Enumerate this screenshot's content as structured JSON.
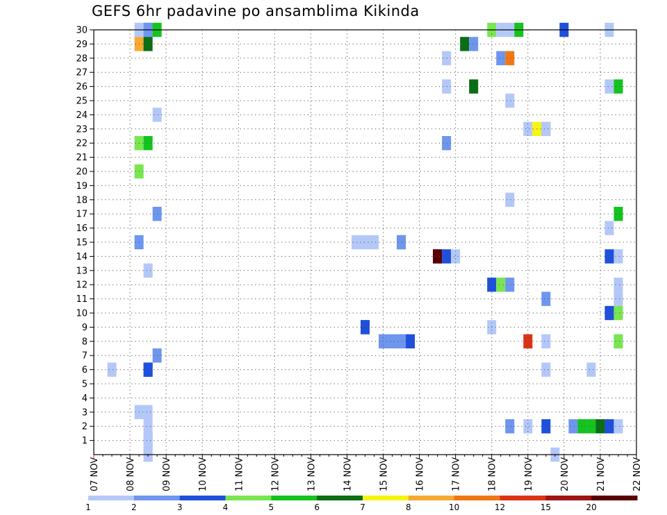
{
  "chart_data": {
    "type": "heatmap",
    "title": "GEFS 6hr padavine po ansamblima Kikinda",
    "xlabel": "",
    "ylabel": "",
    "x_tick_labels": [
      "07 NOV",
      "08 NOV",
      "09 NOV",
      "10 NOV",
      "11 NOV",
      "12 NOV",
      "13 NOV",
      "14 NOV",
      "15 NOV",
      "16 NOV",
      "17 NOV",
      "18 NOV",
      "19 NOV",
      "20 NOV",
      "21 NOV",
      "22 NOV"
    ],
    "x_range_days": [
      0,
      15
    ],
    "y_tick_labels": [
      "1",
      "2",
      "3",
      "4",
      "5",
      "6",
      "7",
      "8",
      "9",
      "10",
      "11",
      "12",
      "13",
      "14",
      "15",
      "16",
      "17",
      "18",
      "19",
      "20",
      "21",
      "22",
      "23",
      "24",
      "25",
      "26",
      "27",
      "28",
      "29",
      "30"
    ],
    "y_range": [
      0,
      30
    ],
    "time_step_hours": 6,
    "grid": true,
    "colorbar": {
      "position": "bottom",
      "colors": [
        "#b4c8f8",
        "#6e96ee",
        "#1e50dc",
        "#78e650",
        "#14c31e",
        "#0a6e14",
        "#f5f514",
        "#f5aa32",
        "#f07814",
        "#dc3214",
        "#a01414",
        "#5a0000"
      ],
      "labels": [
        "1",
        "2",
        "3",
        "4",
        "5",
        "6",
        "7",
        "8",
        "10",
        "12",
        "15",
        "20"
      ]
    },
    "cells": [
      {
        "m": 30,
        "d": "08 NOV",
        "s": 3,
        "c": 0
      },
      {
        "m": 30,
        "d": "08 NOV",
        "s": 4,
        "c": 0
      },
      {
        "m": 30,
        "d": "09 NOV",
        "s": 0,
        "c": 1
      },
      {
        "m": 30,
        "d": "09 NOV",
        "s": 1,
        "c": 4
      },
      {
        "m": 30,
        "d": "18 NOV",
        "s": 2,
        "c": 3
      },
      {
        "m": 30,
        "d": "18 NOV",
        "s": 3,
        "c": 0
      },
      {
        "m": 30,
        "d": "19 NOV",
        "s": 0,
        "c": 0
      },
      {
        "m": 30,
        "d": "19 NOV",
        "s": 1,
        "c": 4
      },
      {
        "m": 30,
        "d": "20 NOV",
        "s": 2,
        "c": 2
      },
      {
        "m": 30,
        "d": "21 NOV",
        "s": 3,
        "c": 0
      },
      {
        "m": 29,
        "d": "08 NOV",
        "s": 3,
        "c": 7
      },
      {
        "m": 29,
        "d": "08 NOV",
        "s": 4,
        "c": 5
      },
      {
        "m": 29,
        "d": "17 NOV",
        "s": 3,
        "c": 5
      },
      {
        "m": 29,
        "d": "17 NOV",
        "s": 4,
        "c": 1
      },
      {
        "m": 28,
        "d": "17 NOV",
        "s": 1,
        "c": 0
      },
      {
        "m": 28,
        "d": "18 NOV",
        "s": 3,
        "c": 1
      },
      {
        "m": 28,
        "d": "18 NOV",
        "s": 4,
        "c": 8
      },
      {
        "m": 26,
        "d": "17 NOV",
        "s": 1,
        "c": 0
      },
      {
        "m": 26,
        "d": "18 NOV",
        "s": 0,
        "c": 5
      },
      {
        "m": 26,
        "d": "21 NOV",
        "s": 3,
        "c": 0
      },
      {
        "m": 26,
        "d": "21 NOV",
        "s": 4,
        "c": 4
      },
      {
        "m": 25,
        "d": "18 NOV",
        "s": 4,
        "c": 0
      },
      {
        "m": 24,
        "d": "09 NOV",
        "s": 1,
        "c": 0
      },
      {
        "m": 23,
        "d": "19 NOV",
        "s": 2,
        "c": 0
      },
      {
        "m": 23,
        "d": "19 NOV",
        "s": 3,
        "c": 6
      },
      {
        "m": 23,
        "d": "19 NOV",
        "s": 4,
        "c": 1
      },
      {
        "m": 23,
        "d": "20 NOV",
        "s": 0,
        "c": 0
      },
      {
        "m": 22,
        "d": "08 NOV",
        "s": 3,
        "c": 3
      },
      {
        "m": 22,
        "d": "08 NOV",
        "s": 4,
        "c": 4
      },
      {
        "m": 22,
        "d": "17 NOV",
        "s": 1,
        "c": 1
      },
      {
        "m": 20,
        "d": "08 NOV",
        "s": 3,
        "c": 3
      },
      {
        "m": 18,
        "d": "19 NOV",
        "s": 0,
        "c": 0
      },
      {
        "m": 17,
        "d": "09 NOV",
        "s": 1,
        "c": 1
      },
      {
        "m": 17,
        "d": "21 NOV",
        "s": 4,
        "c": 4
      },
      {
        "m": 16,
        "d": "21 NOV",
        "s": 3,
        "c": 0
      },
      {
        "m": 15,
        "d": "08 NOV",
        "s": 3,
        "c": 1
      },
      {
        "m": 15,
        "d": "14 NOV",
        "s": 3,
        "c": 0
      },
      {
        "m": 15,
        "d": "14 NOV",
        "s": 4,
        "c": 0
      },
      {
        "m": 15,
        "d": "15 NOV",
        "s": 1,
        "c": 0
      },
      {
        "m": 15,
        "d": "15 NOV",
        "s": 4,
        "c": 4
      },
      {
        "m": 15,
        "d": "16 NOV",
        "s": 0,
        "c": 1
      },
      {
        "m": 14,
        "d": "16 NOV",
        "s": 4,
        "c": 2
      },
      {
        "m": 14,
        "d": "17 NOV",
        "s": 0,
        "c": 11
      },
      {
        "m": 14,
        "d": "17 NOV",
        "s": 1,
        "c": 2
      },
      {
        "m": 14,
        "d": "17 NOV",
        "s": 2,
        "c": 0
      },
      {
        "m": 14,
        "d": "21 NOV",
        "s": 3,
        "c": 2
      },
      {
        "m": 14,
        "d": "21 NOV",
        "s": 4,
        "c": 0
      },
      {
        "m": 13,
        "d": "08 NOV",
        "s": 4,
        "c": 0
      },
      {
        "m": 12,
        "d": "18 NOV",
        "s": 2,
        "c": 2
      },
      {
        "m": 12,
        "d": "18 NOV",
        "s": 3,
        "c": 3
      },
      {
        "m": 12,
        "d": "18 NOV",
        "s": 4,
        "c": 1
      },
      {
        "m": 12,
        "d": "22 NOV",
        "s": 0,
        "c": 0
      },
      {
        "m": 11,
        "d": "20 NOV",
        "s": 0,
        "c": 1
      },
      {
        "m": 11,
        "d": "21 NOV",
        "s": 4,
        "c": 0
      },
      {
        "m": 10,
        "d": "21 NOV",
        "s": 3,
        "c": 2
      },
      {
        "m": 10,
        "d": "21 NOV",
        "s": 4,
        "c": 3
      },
      {
        "m": 9,
        "d": "14 NOV",
        "s": 4,
        "c": 2
      },
      {
        "m": 9,
        "d": "15 NOV",
        "s": 0,
        "c": 2
      },
      {
        "m": 9,
        "d": "18 NOV",
        "s": 2,
        "c": 0
      },
      {
        "m": 8,
        "d": "15 NOV",
        "s": 2,
        "c": 1
      },
      {
        "m": 8,
        "d": "15 NOV",
        "s": 3,
        "c": 1
      },
      {
        "m": 8,
        "d": "15 NOV",
        "s": 4,
        "c": 1
      },
      {
        "m": 8,
        "d": "16 NOV",
        "s": 0,
        "c": 1
      },
      {
        "m": 8,
        "d": "16 NOV",
        "s": 1,
        "c": 2
      },
      {
        "m": 8,
        "d": "19 NOV",
        "s": 2,
        "c": 9
      },
      {
        "m": 8,
        "d": "19 NOV",
        "s": 4,
        "c": 0
      },
      {
        "m": 8,
        "d": "21 NOV",
        "s": 4,
        "c": 1
      },
      {
        "m": 8,
        "d": "22 NOV",
        "s": 0,
        "c": 3
      },
      {
        "m": 7,
        "d": "09 NOV",
        "s": 1,
        "c": 1
      },
      {
        "m": 6,
        "d": "07 NOV",
        "s": 4,
        "c": 0
      },
      {
        "m": 6,
        "d": "08 NOV",
        "s": 4,
        "c": 2
      },
      {
        "m": 6,
        "d": "09 NOV",
        "s": 0,
        "c": 2
      },
      {
        "m": 6,
        "d": "20 NOV",
        "s": 0,
        "c": 0
      },
      {
        "m": 6,
        "d": "21 NOV",
        "s": 1,
        "c": 0
      },
      {
        "m": 3,
        "d": "08 NOV",
        "s": 3,
        "c": 0
      },
      {
        "m": 3,
        "d": "08 NOV",
        "s": 4,
        "c": 0
      },
      {
        "m": 2,
        "d": "08 NOV",
        "s": 4,
        "c": 0
      },
      {
        "m": 2,
        "d": "18 NOV",
        "s": 4,
        "c": 1
      },
      {
        "m": 2,
        "d": "19 NOV",
        "s": 2,
        "c": 0
      },
      {
        "m": 2,
        "d": "19 NOV",
        "s": 4,
        "c": 2
      },
      {
        "m": 2,
        "d": "20 NOV",
        "s": 3,
        "c": 1
      },
      {
        "m": 2,
        "d": "21 NOV",
        "s": 0,
        "c": 4
      },
      {
        "m": 2,
        "d": "21 NOV",
        "s": 1,
        "c": 4
      },
      {
        "m": 2,
        "d": "21 NOV",
        "s": 2,
        "c": 5
      },
      {
        "m": 2,
        "d": "21 NOV",
        "s": 3,
        "c": 2
      },
      {
        "m": 2,
        "d": "21 NOV",
        "s": 4,
        "c": 1
      },
      {
        "m": 2,
        "d": "22 NOV",
        "s": 0,
        "c": 0
      },
      {
        "m": 1,
        "d": "08 NOV",
        "s": 4,
        "c": 1
      },
      {
        "m": 1,
        "d": "09 NOV",
        "s": 0,
        "c": 0
      },
      {
        "m": 0,
        "d": "08 NOV",
        "s": 4,
        "c": 0
      },
      {
        "m": 0,
        "d": "09 NOV",
        "s": 0,
        "c": 0
      },
      {
        "m": 0,
        "d": "20 NOV",
        "s": 1,
        "c": 0
      }
    ]
  }
}
